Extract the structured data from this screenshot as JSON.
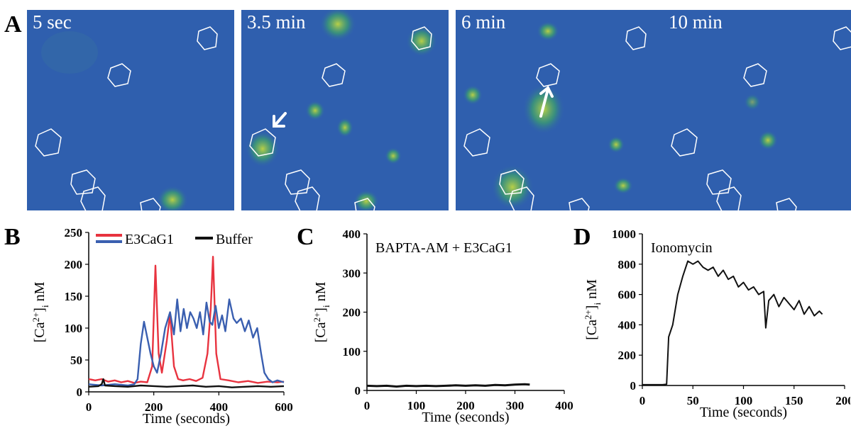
{
  "figure": {
    "panel_letters": {
      "A": "A",
      "B": "B",
      "C": "C",
      "D": "D"
    },
    "panel_A": {
      "timepoints": [
        "5 sec",
        "3.5 min",
        "6 min",
        "10 min"
      ],
      "colors": {
        "background": "#2f5fae",
        "signal": "#2ea36a",
        "high": "#f0f040",
        "outline": "#ffffff"
      }
    }
  },
  "chart_data": [
    {
      "panel": "B",
      "type": "line",
      "title": "",
      "xlabel": "Time (seconds)",
      "ylabel": "[Ca2+]i nM",
      "xlim": [
        0,
        600
      ],
      "ylim": [
        0,
        250
      ],
      "xticks": [
        "0",
        "200",
        "400",
        "600"
      ],
      "yticks": [
        "0",
        "50",
        "100",
        "150",
        "200",
        "250"
      ],
      "legend": {
        "placement": "top",
        "entries": [
          "E3CaG1",
          "Buffer"
        ]
      },
      "series": [
        {
          "color": "#e8333f",
          "points": [
            [
              0,
              20
            ],
            [
              20,
              18
            ],
            [
              40,
              20
            ],
            [
              60,
              16
            ],
            [
              80,
              18
            ],
            [
              100,
              15
            ],
            [
              120,
              17
            ],
            [
              140,
              14
            ],
            [
              160,
              16
            ],
            [
              180,
              15
            ],
            [
              195,
              40
            ],
            [
              205,
              198
            ],
            [
              215,
              60
            ],
            [
              225,
              30
            ],
            [
              240,
              80
            ],
            [
              250,
              122
            ],
            [
              262,
              40
            ],
            [
              275,
              20
            ],
            [
              290,
              18
            ],
            [
              310,
              20
            ],
            [
              330,
              17
            ],
            [
              350,
              22
            ],
            [
              365,
              60
            ],
            [
              375,
              130
            ],
            [
              382,
              212
            ],
            [
              392,
              60
            ],
            [
              405,
              20
            ],
            [
              430,
              18
            ],
            [
              460,
              15
            ],
            [
              490,
              17
            ],
            [
              520,
              14
            ],
            [
              550,
              16
            ],
            [
              580,
              15
            ],
            [
              600,
              16
            ]
          ]
        },
        {
          "color": "#3a5fb0",
          "points": [
            [
              0,
              12
            ],
            [
              40,
              10
            ],
            [
              80,
              12
            ],
            [
              120,
              10
            ],
            [
              140,
              12
            ],
            [
              150,
              20
            ],
            [
              160,
              75
            ],
            [
              170,
              110
            ],
            [
              180,
              85
            ],
            [
              190,
              60
            ],
            [
              200,
              40
            ],
            [
              210,
              30
            ],
            [
              222,
              60
            ],
            [
              235,
              100
            ],
            [
              250,
              125
            ],
            [
              262,
              90
            ],
            [
              272,
              145
            ],
            [
              282,
              95
            ],
            [
              292,
              130
            ],
            [
              302,
              100
            ],
            [
              312,
              125
            ],
            [
              322,
              115
            ],
            [
              332,
              100
            ],
            [
              342,
              125
            ],
            [
              352,
              90
            ],
            [
              362,
              140
            ],
            [
              372,
              110
            ],
            [
              380,
              105
            ],
            [
              390,
              135
            ],
            [
              400,
              100
            ],
            [
              410,
              120
            ],
            [
              420,
              95
            ],
            [
              432,
              145
            ],
            [
              445,
              115
            ],
            [
              455,
              108
            ],
            [
              468,
              115
            ],
            [
              480,
              95
            ],
            [
              492,
              112
            ],
            [
              505,
              85
            ],
            [
              518,
              100
            ],
            [
              530,
              60
            ],
            [
              540,
              30
            ],
            [
              552,
              20
            ],
            [
              565,
              15
            ],
            [
              580,
              18
            ],
            [
              600,
              15
            ]
          ]
        },
        {
          "name": "Buffer",
          "color": "#111111",
          "points": [
            [
              0,
              8
            ],
            [
              30,
              9
            ],
            [
              40,
              12
            ],
            [
              45,
              20
            ],
            [
              50,
              10
            ],
            [
              80,
              9
            ],
            [
              120,
              8
            ],
            [
              160,
              10
            ],
            [
              200,
              9
            ],
            [
              240,
              8
            ],
            [
              280,
              9
            ],
            [
              320,
              10
            ],
            [
              360,
              8
            ],
            [
              400,
              9
            ],
            [
              440,
              7
            ],
            [
              480,
              8
            ],
            [
              520,
              9
            ],
            [
              560,
              8
            ],
            [
              600,
              9
            ]
          ]
        }
      ]
    },
    {
      "panel": "C",
      "type": "line",
      "title": "BAPTA-AM + E3CaG1",
      "xlabel": "Time (seconds)",
      "ylabel": "[Ca2+]i nM",
      "xlim": [
        0,
        400
      ],
      "ylim": [
        0,
        400
      ],
      "xticks": [
        "0",
        "100",
        "200",
        "300",
        "400"
      ],
      "yticks": [
        "0",
        "100",
        "200",
        "300",
        "400"
      ],
      "series": [
        {
          "color": "#111111",
          "points": [
            [
              0,
              12
            ],
            [
              20,
              11
            ],
            [
              40,
              12
            ],
            [
              60,
              10
            ],
            [
              80,
              12
            ],
            [
              100,
              11
            ],
            [
              120,
              12
            ],
            [
              140,
              11
            ],
            [
              160,
              12
            ],
            [
              180,
              13
            ],
            [
              200,
              12
            ],
            [
              220,
              13
            ],
            [
              240,
              12
            ],
            [
              260,
              14
            ],
            [
              280,
              13
            ],
            [
              300,
              15
            ],
            [
              320,
              16
            ],
            [
              330,
              15
            ]
          ]
        }
      ]
    },
    {
      "panel": "D",
      "type": "line",
      "title": "Ionomycin",
      "xlabel": "Time (seconds)",
      "ylabel": "[Ca2+]i nM",
      "xlim": [
        0,
        200
      ],
      "ylim": [
        0,
        1000
      ],
      "xticks": [
        "0",
        "50",
        "100",
        "150",
        "200"
      ],
      "yticks": [
        "0",
        "200",
        "400",
        "600",
        "800",
        "1000"
      ],
      "series": [
        {
          "color": "#111111",
          "points": [
            [
              0,
              5
            ],
            [
              10,
              5
            ],
            [
              20,
              5
            ],
            [
              24,
              8
            ],
            [
              26,
              320
            ],
            [
              30,
              400
            ],
            [
              35,
              600
            ],
            [
              40,
              720
            ],
            [
              45,
              820
            ],
            [
              50,
              800
            ],
            [
              55,
              820
            ],
            [
              60,
              780
            ],
            [
              65,
              760
            ],
            [
              70,
              780
            ],
            [
              75,
              720
            ],
            [
              80,
              760
            ],
            [
              85,
              700
            ],
            [
              90,
              720
            ],
            [
              95,
              650
            ],
            [
              100,
              680
            ],
            [
              105,
              630
            ],
            [
              110,
              650
            ],
            [
              115,
              600
            ],
            [
              120,
              620
            ],
            [
              122,
              380
            ],
            [
              125,
              560
            ],
            [
              130,
              600
            ],
            [
              135,
              520
            ],
            [
              140,
              580
            ],
            [
              145,
              540
            ],
            [
              150,
              500
            ],
            [
              155,
              560
            ],
            [
              160,
              470
            ],
            [
              165,
              520
            ],
            [
              170,
              460
            ],
            [
              175,
              490
            ],
            [
              178,
              470
            ]
          ]
        }
      ]
    }
  ]
}
